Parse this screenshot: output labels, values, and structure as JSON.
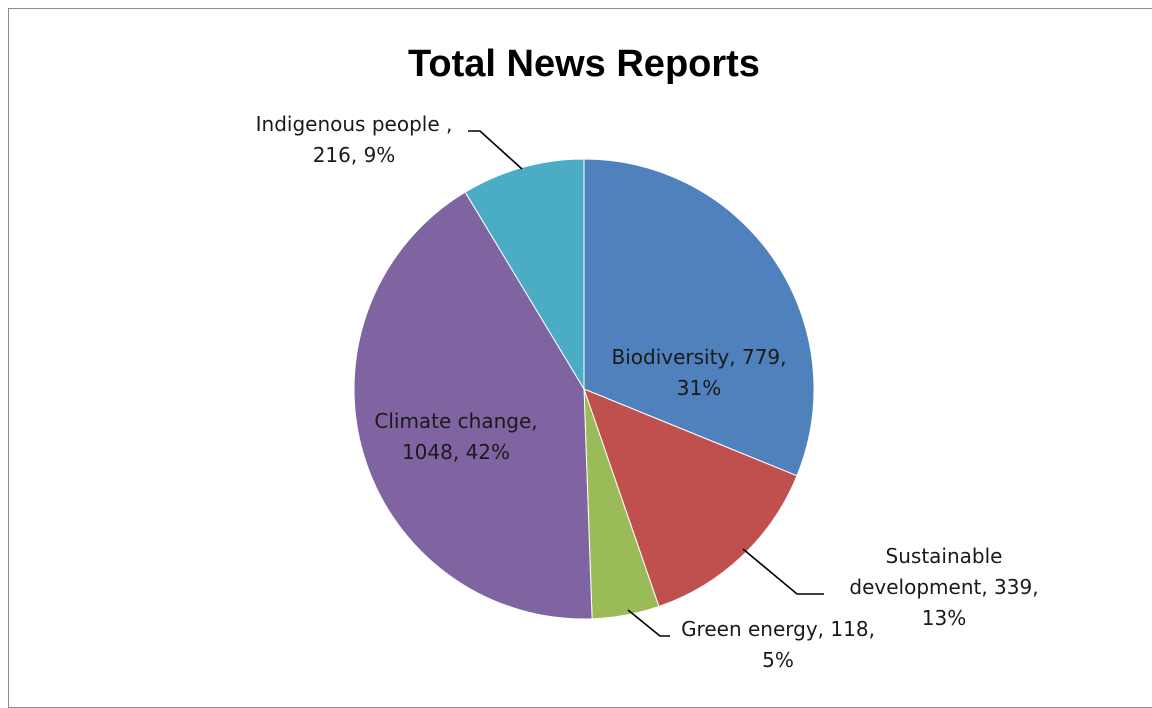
{
  "chart_data": {
    "type": "pie",
    "title": "Total News Reports",
    "slices": [
      {
        "name": "Biodiversity",
        "value": 779,
        "percent": "31%",
        "color": "#4f81bd",
        "label_lines": [
          "Biodiversity, 779,",
          "31%"
        ]
      },
      {
        "name": "Sustainable development",
        "value": 339,
        "percent": "13%",
        "color": "#c0504d",
        "label_lines": [
          "Sustainable",
          "development, 339,",
          "13%"
        ]
      },
      {
        "name": "Green energy",
        "value": 118,
        "percent": "5%",
        "color": "#9bbb59",
        "label_lines": [
          "Green energy, 118,",
          "5%"
        ]
      },
      {
        "name": "Climate change",
        "value": 1048,
        "percent": "42%",
        "color": "#8064a2",
        "label_lines": [
          "Climate change,",
          "1048, 42%"
        ]
      },
      {
        "name": "Indigenous people",
        "value": 216,
        "percent": "9%",
        "color": "#4bacc6",
        "label_lines": [
          "Indigenous people ,",
          "216, 9%"
        ]
      }
    ]
  }
}
